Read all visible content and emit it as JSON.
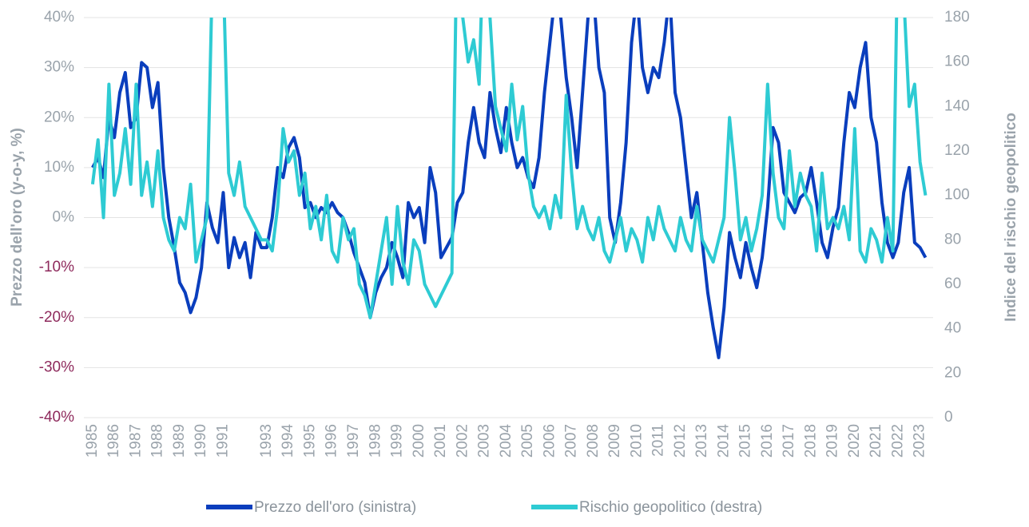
{
  "chart_data": {
    "type": "line",
    "x": [
      1985,
      1985.25,
      1985.5,
      1985.75,
      1986,
      1986.25,
      1986.5,
      1986.75,
      1987,
      1987.25,
      1987.5,
      1987.75,
      1988,
      1988.25,
      1988.5,
      1988.75,
      1989,
      1989.25,
      1989.5,
      1989.75,
      1990,
      1990.25,
      1990.5,
      1990.75,
      1991,
      1991.25,
      1991.5,
      1991.75,
      1992,
      1992.25,
      1992.5,
      1992.75,
      1993,
      1993.25,
      1993.5,
      1993.75,
      1994,
      1994.25,
      1994.5,
      1994.75,
      1995,
      1995.25,
      1995.5,
      1995.75,
      1996,
      1996.25,
      1996.5,
      1996.75,
      1997,
      1997.25,
      1997.5,
      1997.75,
      1998,
      1998.25,
      1998.5,
      1998.75,
      1999,
      1999.25,
      1999.5,
      1999.75,
      2000,
      2000.25,
      2000.5,
      2000.75,
      2001,
      2001.25,
      2001.5,
      2001.75,
      2002,
      2002.25,
      2002.5,
      2002.75,
      2003,
      2003.25,
      2003.5,
      2003.75,
      2004,
      2004.25,
      2004.5,
      2004.75,
      2005,
      2005.25,
      2005.5,
      2005.75,
      2006,
      2006.25,
      2006.5,
      2006.75,
      2007,
      2007.25,
      2007.5,
      2007.75,
      2008,
      2008.25,
      2008.5,
      2008.75,
      2009,
      2009.25,
      2009.5,
      2009.75,
      2010,
      2010.25,
      2010.5,
      2010.75,
      2011,
      2011.25,
      2011.5,
      2011.75,
      2012,
      2012.25,
      2012.5,
      2012.75,
      2013,
      2013.25,
      2013.5,
      2013.75,
      2014,
      2014.25,
      2014.5,
      2014.75,
      2015,
      2015.25,
      2015.5,
      2015.75,
      2016,
      2016.25,
      2016.5,
      2016.75,
      2017,
      2017.25,
      2017.5,
      2017.75,
      2018,
      2018.25,
      2018.5,
      2018.75,
      2019,
      2019.25,
      2019.5,
      2019.75,
      2020,
      2020.25,
      2020.5,
      2020.75,
      2021,
      2021.25,
      2021.5,
      2021.75,
      2022,
      2022.25,
      2022.5,
      2022.75,
      2023,
      2023.25
    ],
    "series": [
      {
        "name": "Prezzo dell'oro (sinistra)",
        "color": "#0a3ebd",
        "values": [
          10,
          12,
          8,
          20,
          16,
          25,
          29,
          18,
          20,
          31,
          30,
          22,
          27,
          10,
          0,
          -6,
          -13,
          -15,
          -19,
          -16,
          -10,
          3,
          -2,
          -5,
          5,
          -10,
          -4,
          -8,
          -5,
          -12,
          -3,
          -6,
          -6,
          0,
          10,
          8,
          14,
          16,
          12,
          2,
          3,
          0,
          2,
          1,
          3,
          1,
          0,
          -3,
          -7,
          -10,
          -13,
          -20,
          -15,
          -12,
          -10,
          -5,
          -8,
          -12,
          3,
          0,
          2,
          -5,
          10,
          5,
          -8,
          -6,
          -4,
          3,
          5,
          15,
          22,
          15,
          12,
          25,
          18,
          13,
          22,
          15,
          10,
          12,
          8,
          6,
          12,
          25,
          35,
          45,
          40,
          28,
          20,
          10,
          25,
          40,
          45,
          30,
          25,
          0,
          -5,
          3,
          15,
          35,
          45,
          30,
          25,
          30,
          28,
          35,
          45,
          25,
          20,
          10,
          0,
          5,
          -5,
          -15,
          -22,
          -28,
          -18,
          -3,
          -8,
          -12,
          -5,
          -10,
          -14,
          -8,
          2,
          18,
          15,
          5,
          3,
          1,
          4,
          5,
          10,
          3,
          -5,
          -8,
          -2,
          2,
          15,
          25,
          22,
          30,
          35,
          20,
          15,
          3,
          -5,
          -8,
          -5,
          5,
          10,
          -5,
          -6,
          -8
        ]
      },
      {
        "name": "Rischio geopolitico (destra)",
        "color": "#2ecbd3",
        "axis": "y2",
        "values": [
          105,
          125,
          90,
          150,
          100,
          110,
          130,
          105,
          150,
          100,
          115,
          95,
          120,
          90,
          80,
          75,
          90,
          85,
          105,
          70,
          80,
          90,
          200,
          185,
          200,
          110,
          100,
          115,
          95,
          90,
          85,
          80,
          80,
          75,
          95,
          130,
          115,
          120,
          100,
          110,
          85,
          95,
          80,
          100,
          75,
          70,
          90,
          80,
          85,
          60,
          55,
          45,
          60,
          75,
          90,
          60,
          95,
          70,
          60,
          80,
          75,
          60,
          55,
          50,
          55,
          60,
          65,
          230,
          180,
          160,
          170,
          150,
          230,
          180,
          140,
          130,
          120,
          150,
          125,
          140,
          110,
          95,
          90,
          95,
          85,
          100,
          90,
          145,
          110,
          85,
          95,
          85,
          80,
          90,
          75,
          70,
          80,
          90,
          75,
          85,
          80,
          70,
          90,
          80,
          95,
          85,
          80,
          75,
          90,
          80,
          75,
          95,
          80,
          75,
          70,
          80,
          90,
          135,
          110,
          80,
          90,
          75,
          85,
          100,
          150,
          110,
          90,
          85,
          120,
          95,
          110,
          100,
          95,
          75,
          110,
          85,
          90,
          85,
          95,
          80,
          130,
          75,
          70,
          85,
          80,
          70,
          90,
          75,
          230,
          190,
          140,
          150,
          115,
          100
        ]
      }
    ],
    "xlim": [
      1984.6,
      2023.6
    ],
    "xticks": [
      1985,
      1986,
      1987,
      1988,
      1989,
      1990,
      1991,
      1993,
      1994,
      1995,
      1996,
      1997,
      1998,
      1999,
      2000,
      2001,
      2002,
      2003,
      2004,
      2005,
      2006,
      2007,
      2008,
      2009,
      2010,
      2011,
      2012,
      2013,
      2014,
      2015,
      2016,
      2017,
      2018,
      2019,
      2020,
      2021,
      2022,
      2023
    ],
    "ylim": [
      -40,
      40
    ],
    "yticks": [
      {
        "value": -40,
        "label": "-40%"
      },
      {
        "value": -30,
        "label": "-30%"
      },
      {
        "value": -20,
        "label": "-20%"
      },
      {
        "value": -10,
        "label": "-10%"
      },
      {
        "value": 0,
        "label": "0%"
      },
      {
        "value": 10,
        "label": "10%"
      },
      {
        "value": 20,
        "label": "20%"
      },
      {
        "value": 30,
        "label": "30%"
      },
      {
        "value": 40,
        "label": "40%"
      }
    ],
    "y2lim": [
      0,
      180
    ],
    "y2ticks": [
      0,
      20,
      40,
      60,
      80,
      100,
      120,
      140,
      160,
      180
    ],
    "ylabel": "Prezzo dell'oro (y-o-y, %)",
    "y2label": "Indice del rischio geopolitico",
    "tick_color": "#9aa3ab",
    "negative_tick_color": "#8e2a5c",
    "grid": true,
    "legend": "bottom"
  }
}
